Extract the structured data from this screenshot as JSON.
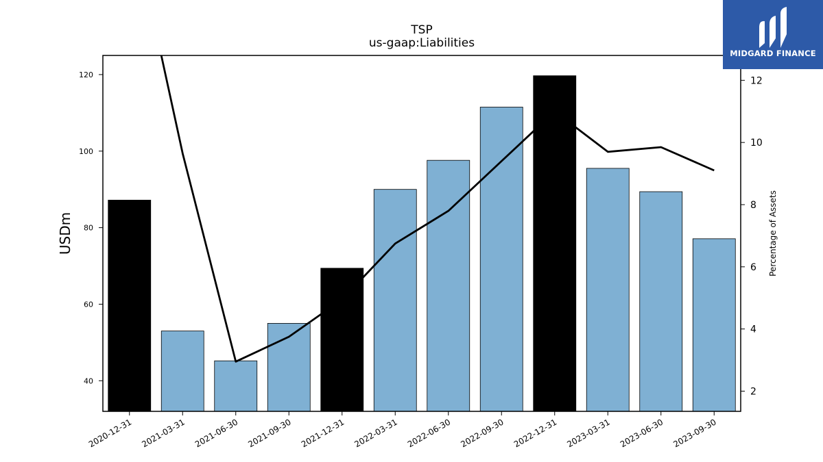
{
  "chart_data": {
    "type": "bar",
    "title": "TSP",
    "subtitle": "us-gaap:Liabilities",
    "ylabel": "USDm",
    "y2label": "Percentage of Assets",
    "categories": [
      "2020-12-31",
      "2021-03-31",
      "2021-06-30",
      "2021-09-30",
      "2021-12-31",
      "2022-03-31",
      "2022-06-30",
      "2022-09-30",
      "2022-12-31",
      "2023-03-31",
      "2023-06-30",
      "2023-09-30"
    ],
    "series": [
      {
        "values": [
          87.2,
          53.0,
          45.2,
          55.0,
          69.4,
          90.0,
          97.6,
          111.5,
          119.7,
          95.5,
          89.4,
          77.1
        ],
        "highlight": [
          true,
          false,
          false,
          false,
          true,
          false,
          false,
          false,
          true,
          false,
          false,
          false
        ]
      },
      {
        "type": "line",
        "axis": "right",
        "values": [
          17.5,
          9.65,
          2.95,
          3.75,
          4.95,
          6.75,
          7.8,
          9.4,
          11.0,
          9.7,
          9.85,
          9.1
        ]
      }
    ],
    "ylim": [
      32,
      125
    ],
    "y2lim": [
      1.35,
      12.8
    ],
    "yticks": [
      40,
      60,
      80,
      100,
      120
    ],
    "y2ticks": [
      2,
      4,
      6,
      8,
      10,
      12
    ],
    "bar_color": "#7fb0d3",
    "highlight_color": "#000000",
    "line_color": "#000000",
    "grid": false,
    "legend": "none"
  },
  "logo": {
    "text": "MIDGARD FINANCE",
    "color": "#2d5aa8"
  }
}
